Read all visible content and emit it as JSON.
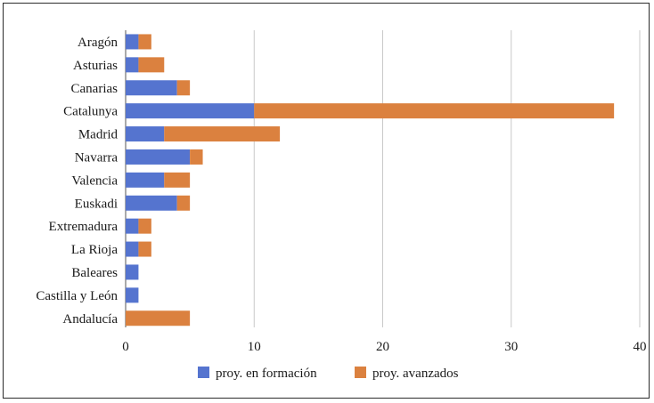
{
  "chart_data": {
    "type": "bar",
    "orientation": "horizontal",
    "stacked": true,
    "categories": [
      "Aragón",
      "Asturias",
      "Canarias",
      "Catalunya",
      "Madrid",
      "Navarra",
      "Valencia",
      "Euskadi",
      "Extremadura",
      "La Rioja",
      "Baleares",
      "Castilla y León",
      "Andalucía"
    ],
    "series": [
      {
        "name": "proy. en formación",
        "color": "#5574cf",
        "values": [
          1,
          1,
          4,
          10,
          3,
          5,
          3,
          4,
          1,
          1,
          1,
          1,
          0
        ]
      },
      {
        "name": "proy. avanzados",
        "color": "#db813f",
        "values": [
          1,
          2,
          1,
          28,
          9,
          1,
          2,
          1,
          1,
          1,
          0,
          0,
          5
        ]
      }
    ],
    "xlim": [
      0,
      40
    ],
    "xticks": [
      0,
      10,
      20,
      30,
      40
    ],
    "grid": true,
    "legend_position": "bottom",
    "title": "",
    "xlabel": "",
    "ylabel": ""
  }
}
